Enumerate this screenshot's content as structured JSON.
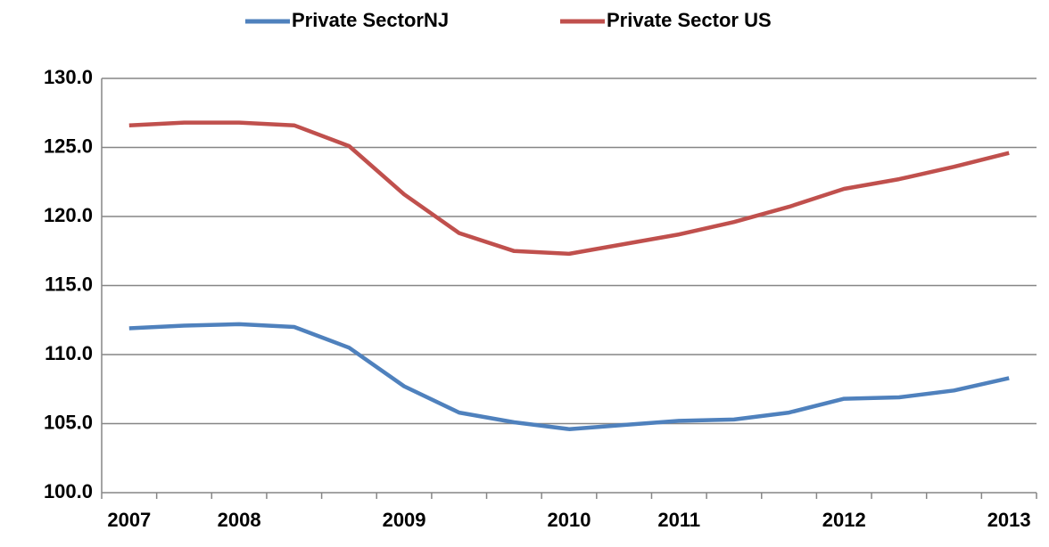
{
  "chart_data": {
    "type": "line",
    "categories": [
      "2007",
      null,
      "2008",
      null,
      null,
      "2009",
      null,
      null,
      "2010",
      null,
      "2011",
      null,
      null,
      "2012",
      null,
      null,
      "2013"
    ],
    "series": [
      {
        "name": "Private SectorNJ",
        "color": "#4f81bd",
        "values": [
          111.9,
          112.1,
          112.2,
          112.0,
          110.5,
          107.7,
          105.8,
          105.1,
          104.6,
          104.9,
          105.2,
          105.3,
          105.8,
          106.8,
          106.9,
          107.4,
          108.3
        ]
      },
      {
        "name": "Private Sector US",
        "color": "#c0504d",
        "values": [
          126.6,
          126.8,
          126.8,
          126.6,
          125.1,
          121.6,
          118.8,
          117.5,
          117.3,
          118.0,
          118.7,
          119.6,
          120.7,
          122.0,
          122.7,
          123.6,
          124.6
        ]
      }
    ],
    "ylim": [
      100,
      130
    ],
    "yticks": [
      {
        "value": 100,
        "label": "100.0"
      },
      {
        "value": 105,
        "label": "105.0"
      },
      {
        "value": 110,
        "label": "110.0"
      },
      {
        "value": 115,
        "label": "115.0"
      },
      {
        "value": 120,
        "label": "120.0"
      },
      {
        "value": 125,
        "label": "125.0"
      },
      {
        "value": 130,
        "label": "130.0"
      }
    ],
    "grid": true,
    "legend": "top"
  }
}
